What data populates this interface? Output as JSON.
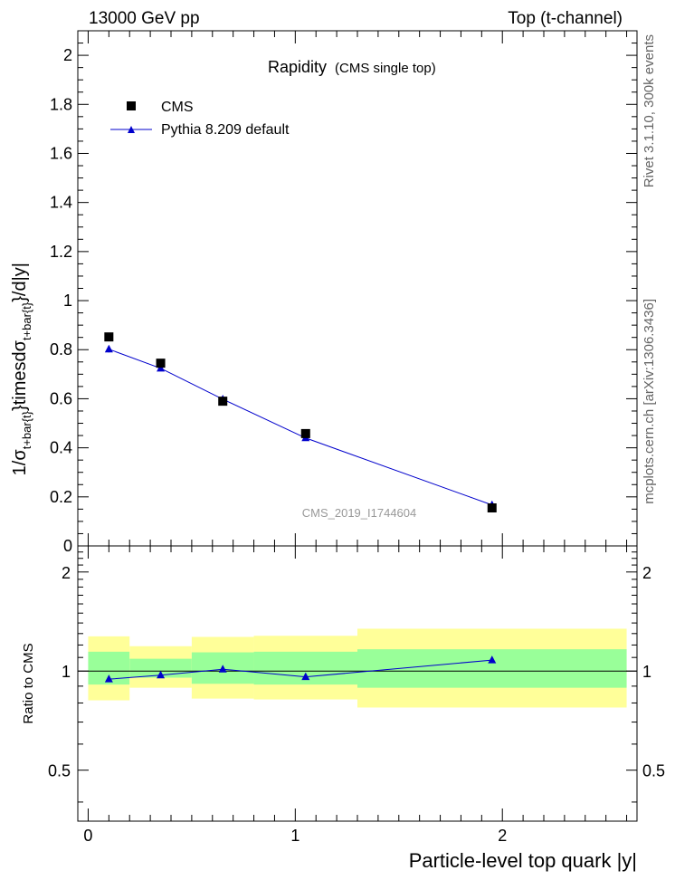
{
  "header": {
    "left": "13000 GeV pp",
    "right": "Top (t-channel)"
  },
  "side_labels": {
    "rivet": "Rivet 3.1.10,  300k events",
    "mcplots": "mcplots.cern.ch [arXiv:1306.3436]"
  },
  "chart_data": [
    {
      "type": "scatter",
      "title": "Rapidity",
      "subtitle": "(CMS single top)",
      "ylabel": "1/σ_{t+bar{t}}timesdσ_{t+bar{t}}/d|y|",
      "ylabel_parts": {
        "prefix": "1/σ",
        "sub1": "t+bar{t}",
        "mid": "}timesdσ",
        "sub2": "t+bar{t}",
        "suffix": "}/d|y|"
      },
      "watermark": "CMS_2019_I1744604",
      "ylim": [
        0,
        2.1
      ],
      "xlim": [
        -0.05,
        2.65
      ],
      "yticks": [
        0,
        0.2,
        0.4,
        0.6,
        0.8,
        1,
        1.2,
        1.4,
        1.6,
        1.8,
        2
      ],
      "ytick_labels": [
        "0",
        "0.2",
        "0.4",
        "0.6",
        "0.8",
        "1",
        "1.2",
        "1.4",
        "1.6",
        "1.8",
        "2"
      ],
      "legend": {
        "placement": "top-left",
        "entries": [
          "CMS",
          "Pythia 8.209 default"
        ]
      },
      "series": [
        {
          "name": "CMS",
          "color": "#000000",
          "marker": "square",
          "x": [
            0.1,
            0.35,
            0.65,
            1.05,
            1.95
          ],
          "y": [
            0.852,
            0.745,
            0.59,
            0.458,
            0.155
          ]
        },
        {
          "name": "Pythia 8.209 default",
          "color": "#0000cc",
          "marker": "triangle",
          "x": [
            0.1,
            0.35,
            0.65,
            1.05,
            1.95
          ],
          "y": [
            0.802,
            0.724,
            0.598,
            0.44,
            0.167
          ],
          "yerr": [
            0.013,
            0.008,
            0.007,
            0.006,
            0.004
          ]
        }
      ]
    },
    {
      "type": "line",
      "ylabel": "Ratio to CMS",
      "xlabel": "Particle-level top quark |y|",
      "ylim": [
        0.35,
        2.4
      ],
      "xlim": [
        -0.05,
        2.65
      ],
      "xticks": [
        0,
        1,
        2
      ],
      "xtick_labels": [
        "0",
        "1",
        "2"
      ],
      "yticks": [
        0.5,
        1,
        2
      ],
      "ytick_labels": [
        "0.5",
        "1",
        "2"
      ],
      "bands": {
        "colors": {
          "outer": "#ffff99",
          "inner": "#99ff99"
        },
        "bins": [
          {
            "x0": 0.0,
            "x1": 0.2,
            "outer": [
              0.815,
              1.275
            ],
            "inner": [
              0.91,
              1.145
            ]
          },
          {
            "x0": 0.2,
            "x1": 0.5,
            "outer": [
              0.89,
              1.19
            ],
            "inner": [
              0.955,
              1.09
            ]
          },
          {
            "x0": 0.5,
            "x1": 0.8,
            "outer": [
              0.825,
              1.27
            ],
            "inner": [
              0.915,
              1.14
            ]
          },
          {
            "x0": 0.8,
            "x1": 1.3,
            "outer": [
              0.82,
              1.28
            ],
            "inner": [
              0.91,
              1.145
            ]
          },
          {
            "x0": 1.3,
            "x1": 2.6,
            "outer": [
              0.775,
              1.345
            ],
            "inner": [
              0.89,
              1.165
            ]
          }
        ]
      },
      "series": [
        {
          "name": "Pythia 8.209 default",
          "color": "#0000cc",
          "x": [
            0.1,
            0.35,
            0.65,
            1.05,
            1.95
          ],
          "y": [
            0.945,
            0.972,
            1.013,
            0.96,
            1.08
          ]
        }
      ]
    }
  ]
}
